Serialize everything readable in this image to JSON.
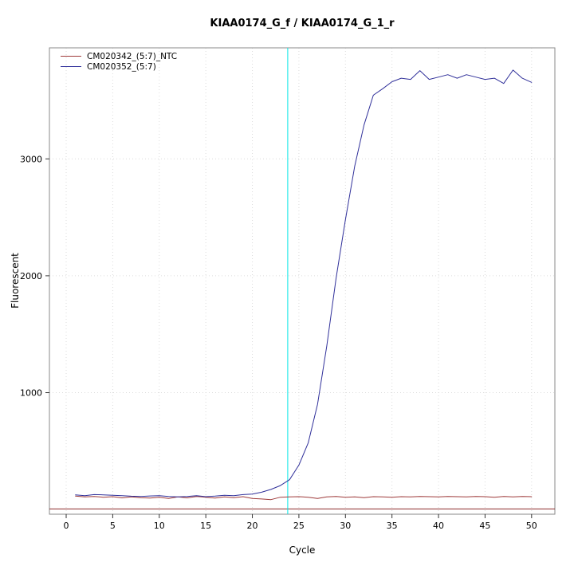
{
  "title": "KIAA0174_G_f / KIAA0174_G_1_r",
  "chart_data": {
    "type": "line",
    "title": "KIAA0174_G_f / KIAA0174_G_1_r",
    "xlabel": "Cycle",
    "ylabel": "Fluorescent",
    "x_ticks": [
      0,
      5,
      10,
      15,
      20,
      25,
      30,
      35,
      40,
      45,
      50
    ],
    "y_ticks": [
      1000,
      2000,
      3000
    ],
    "x_range": [
      -1.8,
      52.5
    ],
    "y_range": [
      -40,
      3950
    ],
    "grid": "dotted",
    "legend_position": "top-left",
    "threshold_line": {
      "y": 5,
      "color": "#8b2a2a"
    },
    "ct_line": {
      "x": 23.8,
      "color": "#00e5e5"
    },
    "series": [
      {
        "name": "CM020342_(5:7)_NTC",
        "color": "#9e3a3a",
        "x": [
          1,
          2,
          3,
          4,
          5,
          6,
          7,
          8,
          9,
          10,
          11,
          12,
          13,
          14,
          15,
          16,
          17,
          18,
          19,
          20,
          21,
          22,
          23,
          24,
          25,
          26,
          27,
          28,
          29,
          30,
          31,
          32,
          33,
          34,
          35,
          36,
          37,
          38,
          39,
          40,
          41,
          42,
          43,
          44,
          45,
          46,
          47,
          48,
          49,
          50
        ],
        "values": [
          115,
          108,
          112,
          105,
          110,
          100,
          108,
          102,
          98,
          105,
          95,
          108,
          100,
          112,
          105,
          98,
          108,
          102,
          110,
          95,
          90,
          85,
          105,
          108,
          110,
          105,
          95,
          108,
          112,
          105,
          108,
          102,
          110,
          108,
          105,
          110,
          108,
          112,
          110,
          108,
          112,
          110,
          108,
          112,
          110,
          105,
          112,
          108,
          112,
          110
        ]
      },
      {
        "name": "CM020352_(5:7)",
        "color": "#30309a",
        "x": [
          1,
          2,
          3,
          4,
          5,
          6,
          7,
          8,
          9,
          10,
          11,
          12,
          13,
          14,
          15,
          16,
          17,
          18,
          19,
          20,
          21,
          22,
          23,
          24,
          25,
          26,
          27,
          28,
          29,
          30,
          31,
          32,
          33,
          34,
          35,
          36,
          37,
          38,
          39,
          40,
          41,
          42,
          43,
          44,
          45,
          46,
          47,
          48,
          49,
          50
        ],
        "values": [
          125,
          118,
          128,
          126,
          122,
          118,
          114,
          112,
          116,
          118,
          112,
          108,
          112,
          118,
          110,
          115,
          122,
          118,
          128,
          132,
          148,
          172,
          205,
          255,
          380,
          570,
          900,
          1400,
          1980,
          2480,
          2940,
          3290,
          3545,
          3600,
          3660,
          3690,
          3680,
          3755,
          3680,
          3700,
          3720,
          3690,
          3720,
          3700,
          3680,
          3690,
          3645,
          3760,
          3690,
          3655
        ]
      }
    ]
  }
}
